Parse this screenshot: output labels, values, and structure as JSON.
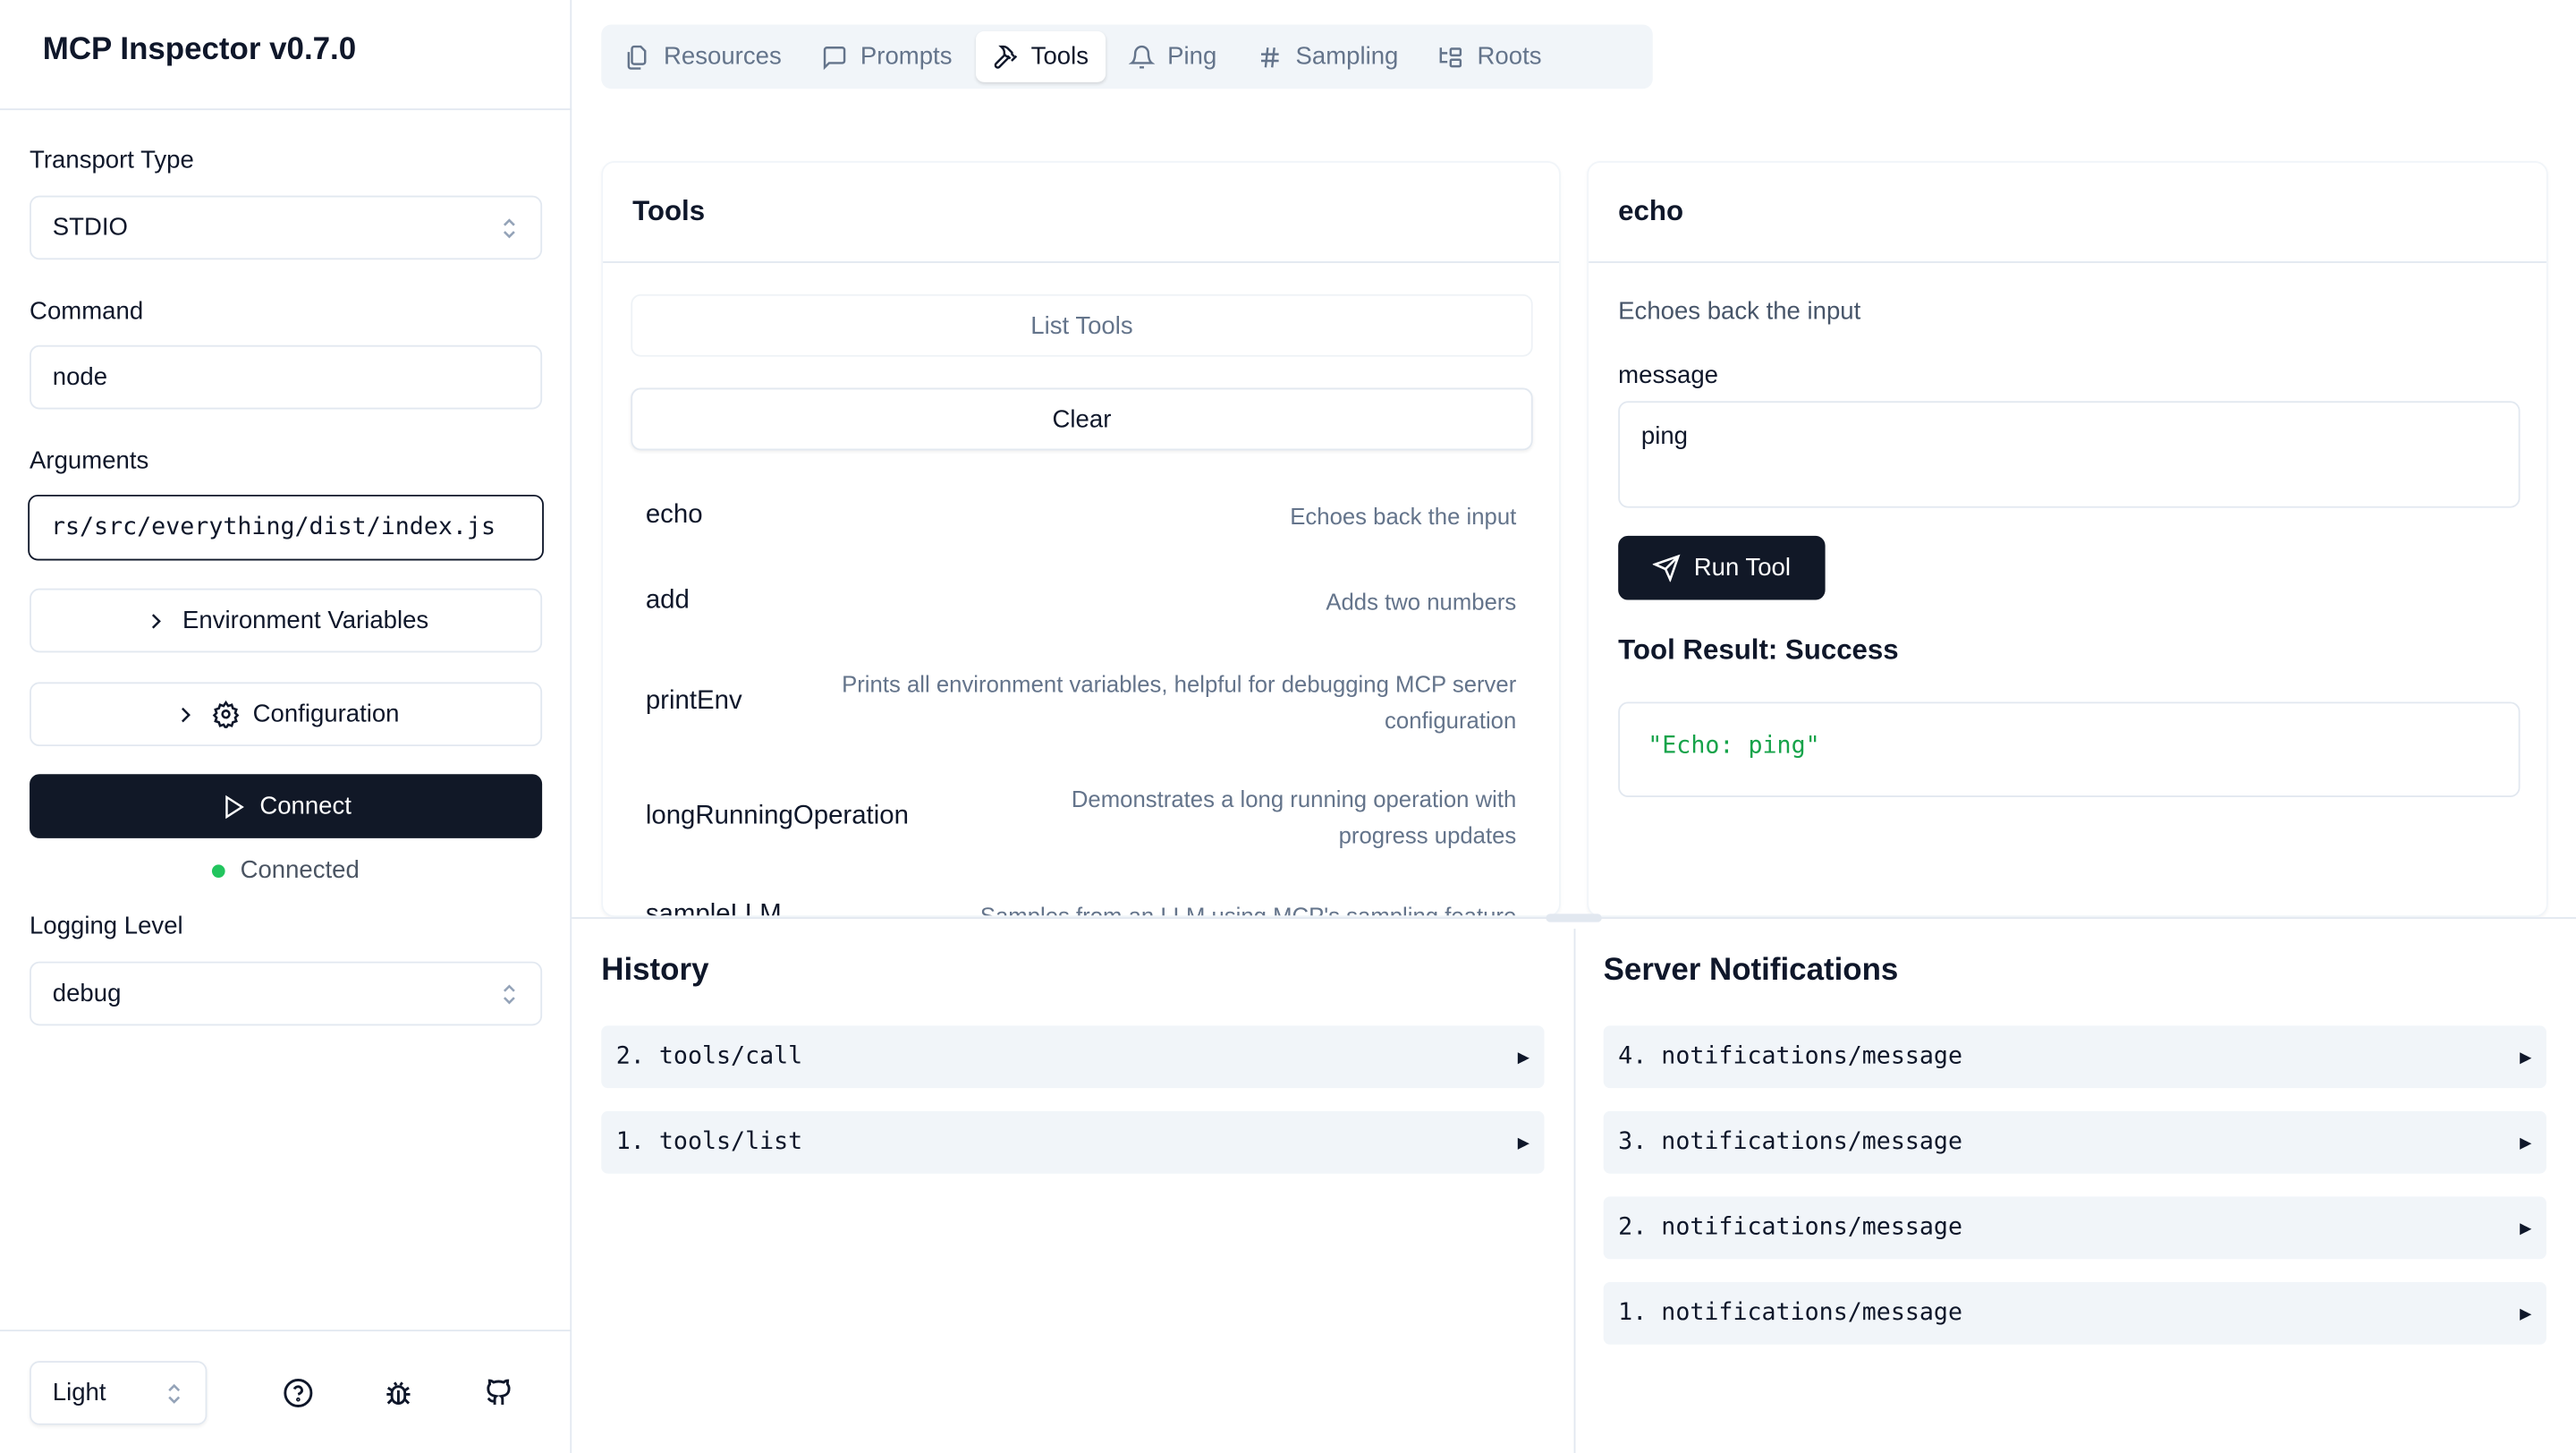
{
  "app": {
    "title": "MCP Inspector v0.7.0"
  },
  "sidebar": {
    "transport_label": "Transport Type",
    "transport_value": "STDIO",
    "command_label": "Command",
    "command_value": "node",
    "arguments_label": "Arguments",
    "arguments_value": "rs/src/everything/dist/index.js",
    "env_button": "Environment Variables",
    "config_button": "Configuration",
    "connect_button": "Connect",
    "status": "Connected",
    "status_color": "#22c55e",
    "logging_label": "Logging Level",
    "logging_value": "debug",
    "theme_value": "Light",
    "footer_icons": [
      "help-circle-icon",
      "bug-icon",
      "github-icon"
    ]
  },
  "tabs": [
    {
      "label": "Resources",
      "icon": "files-icon"
    },
    {
      "label": "Prompts",
      "icon": "message-square-icon"
    },
    {
      "label": "Tools",
      "icon": "hammer-icon",
      "active": true
    },
    {
      "label": "Ping",
      "icon": "bell-icon"
    },
    {
      "label": "Sampling",
      "icon": "hash-icon"
    },
    {
      "label": "Roots",
      "icon": "folder-tree-icon"
    }
  ],
  "tools_panel": {
    "title": "Tools",
    "list_button": "List Tools",
    "clear_button": "Clear",
    "tools": [
      {
        "name": "echo",
        "description": "Echoes back the input"
      },
      {
        "name": "add",
        "description": "Adds two numbers"
      },
      {
        "name": "printEnv",
        "description": "Prints all environment variables, helpful for debugging MCP server configuration"
      },
      {
        "name": "longRunningOperation",
        "description": "Demonstrates a long running operation with progress updates"
      },
      {
        "name": "sampleLLM",
        "description": "Samples from an LLM using MCP's sampling feature"
      }
    ]
  },
  "tool_detail": {
    "title": "echo",
    "description": "Echoes back the input",
    "param_label": "message",
    "param_value": "ping",
    "run_button": "Run Tool",
    "result_title": "Tool Result: Success",
    "result_value": "\"Echo: ping\"",
    "result_color": "#16a34a"
  },
  "history": {
    "title": "History",
    "items": [
      "2. tools/call",
      "1. tools/list"
    ]
  },
  "notifications": {
    "title": "Server Notifications",
    "items": [
      "4. notifications/message",
      "3. notifications/message",
      "2. notifications/message",
      "1. notifications/message"
    ]
  }
}
